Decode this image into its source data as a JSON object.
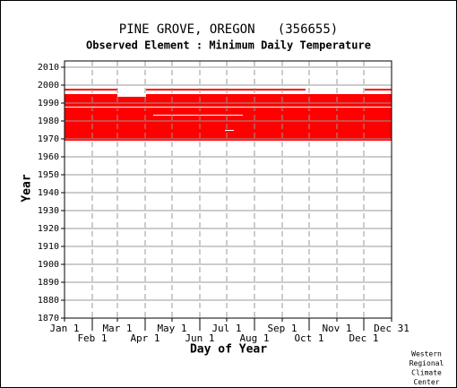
{
  "chart_data": {
    "type": "range",
    "title": "PINE GROVE, OREGON   (356655)",
    "subtitle": "Observed Element : Minimum Daily Temperature",
    "x_label": "Day of Year",
    "y_label": "Year",
    "credit": [
      "Western",
      "Regional",
      "Climate",
      "Center"
    ],
    "color": "#ff0000",
    "gap_color": "#ffffff",
    "segments": [
      {
        "days": [
          1,
          366
        ],
        "years": [
          1969,
          1995
        ]
      },
      {
        "days": [
          1,
          60
        ],
        "years": [
          1997,
          1998
        ]
      },
      {
        "days": [
          92,
          270
        ],
        "years": [
          1997,
          1998
        ]
      },
      {
        "days": [
          336,
          366
        ],
        "years": [
          1997,
          1998
        ]
      }
    ],
    "gaps": [
      {
        "days": [
          1,
          366
        ],
        "years": [
          1987.5,
          1988
        ]
      },
      {
        "days": [
          60,
          92
        ],
        "years": [
          1993.5,
          1995
        ]
      },
      {
        "days": [
          1,
          92
        ],
        "years": [
          1995,
          1996
        ]
      },
      {
        "days": [
          100,
          200
        ],
        "years": [
          1983,
          1983.5
        ]
      },
      {
        "days": [
          180,
          190
        ],
        "years": [
          1974.5,
          1975
        ]
      }
    ],
    "xlim": [
      1,
      366
    ],
    "xticks": [
      {
        "value": 1,
        "label": "Jan 1"
      },
      {
        "value": 32,
        "label": "Feb 1"
      },
      {
        "value": 60,
        "label": "Mar 1"
      },
      {
        "value": 91,
        "label": "Apr 1"
      },
      {
        "value": 121,
        "label": "May 1"
      },
      {
        "value": 152,
        "label": "Jun 1"
      },
      {
        "value": 182,
        "label": "Jul 1"
      },
      {
        "value": 213,
        "label": "Aug 1"
      },
      {
        "value": 244,
        "label": "Sep 1"
      },
      {
        "value": 274,
        "label": "Oct 1"
      },
      {
        "value": 305,
        "label": "Nov 1"
      },
      {
        "value": 335,
        "label": "Dec 1"
      },
      {
        "value": 366,
        "label": "Dec 31"
      }
    ],
    "ylim": [
      1870,
      2010
    ],
    "yticks": [
      1870,
      1880,
      1890,
      1900,
      1910,
      1920,
      1930,
      1940,
      1950,
      1960,
      1970,
      1980,
      1990,
      2000,
      2010
    ],
    "grid": true
  }
}
